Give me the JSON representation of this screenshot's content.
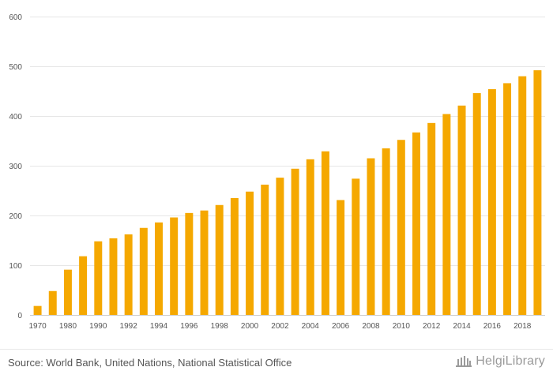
{
  "chart_data": {
    "type": "bar",
    "title": "",
    "xlabel": "",
    "ylabel": "",
    "ylim": [
      0,
      600
    ],
    "yticks": [
      0,
      100,
      200,
      300,
      400,
      500,
      600
    ],
    "x_tick_labels": [
      "1970",
      "1980",
      "1990",
      "1992",
      "1994",
      "1996",
      "1998",
      "2000",
      "2002",
      "2004",
      "2006",
      "2008",
      "2010",
      "2012",
      "2014",
      "2016",
      "2018"
    ],
    "categories": [
      "1970",
      "1975",
      "1980",
      "1985",
      "1990",
      "1991",
      "1992",
      "1993",
      "1994",
      "1995",
      "1996",
      "1997",
      "1998",
      "1999",
      "2000",
      "2001",
      "2002",
      "2003",
      "2004",
      "2005",
      "2006",
      "2007",
      "2008",
      "2009",
      "2010",
      "2011",
      "2012",
      "2013",
      "2014",
      "2015",
      "2016",
      "2017",
      "2018",
      "2019"
    ],
    "values": [
      18,
      48,
      91,
      118,
      148,
      154,
      162,
      175,
      186,
      196,
      205,
      210,
      221,
      235,
      248,
      262,
      276,
      294,
      313,
      329,
      231,
      274,
      315,
      335,
      352,
      367,
      386,
      404,
      421,
      446,
      454,
      466,
      480,
      492
    ],
    "bar_color": "#f5a800",
    "grid": true
  },
  "footer": {
    "source": "Source: World Bank, United Nations, National Statistical Office",
    "brand": "HelgiLibrary"
  },
  "colors": {
    "bar": "#f5a800",
    "grid": "#e6e6e6",
    "text": "#555555",
    "brand": "#9a9a9a"
  }
}
